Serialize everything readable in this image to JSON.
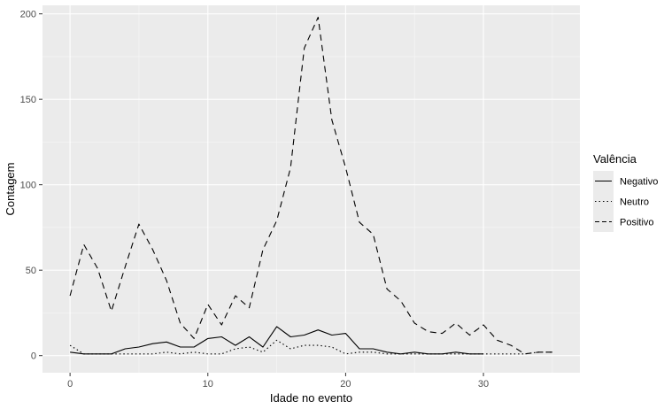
{
  "chart_data": {
    "type": "line",
    "xlabel": "Idade no evento",
    "ylabel": "Contagem",
    "xlim": [
      -2,
      37
    ],
    "ylim": [
      -10,
      205
    ],
    "xticks": [
      0,
      10,
      20,
      30
    ],
    "yticks": [
      0,
      50,
      100,
      150,
      200
    ],
    "grid": true,
    "legend": {
      "title": "Valência",
      "placement": "right"
    },
    "x": [
      0,
      1,
      2,
      3,
      4,
      5,
      6,
      7,
      8,
      9,
      10,
      11,
      12,
      13,
      14,
      15,
      16,
      17,
      18,
      19,
      20,
      21,
      22,
      23,
      24,
      25,
      26,
      27,
      28,
      29,
      30,
      31,
      32,
      33,
      34,
      35
    ],
    "series": [
      {
        "name": "Negativo",
        "linetype": "solid",
        "values": [
          2,
          1,
          1,
          1,
          4,
          5,
          7,
          8,
          5,
          5,
          10,
          11,
          6,
          11,
          5,
          17,
          11,
          12,
          15,
          12,
          13,
          4,
          4,
          2,
          1,
          2,
          1,
          1,
          2,
          1,
          1,
          null,
          null,
          null,
          null,
          null
        ]
      },
      {
        "name": "Neutro",
        "linetype": "dotted",
        "values": [
          6,
          1,
          1,
          1,
          1,
          1,
          1,
          2,
          1,
          2,
          1,
          1,
          4,
          5,
          2,
          9,
          4,
          6,
          6,
          5,
          1,
          2,
          2,
          1,
          1,
          1,
          1,
          1,
          1,
          1,
          1,
          1,
          1,
          1,
          2,
          2
        ]
      },
      {
        "name": "Positivo",
        "linetype": "dashed",
        "values": [
          35,
          65,
          51,
          26,
          52,
          77,
          62,
          44,
          19,
          10,
          30,
          18,
          35,
          28,
          62,
          79,
          110,
          180,
          198,
          138,
          110,
          78,
          71,
          39,
          32,
          19,
          14,
          13,
          19,
          12,
          18,
          9,
          6,
          1,
          2,
          2
        ]
      }
    ]
  }
}
